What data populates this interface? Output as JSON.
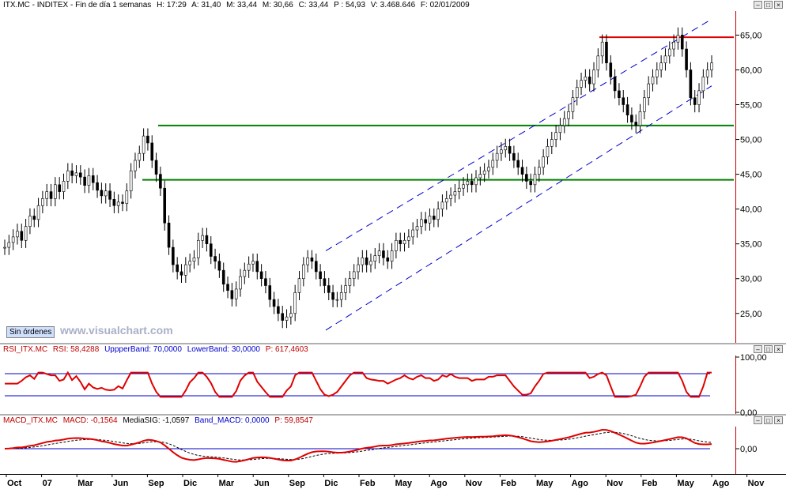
{
  "price_header": {
    "symbol": "ITX.MC - INDITEX - Fin de día 1 semanas",
    "h": "H: 17:29",
    "a": "A: 31,40",
    "m": "M: 33,44",
    "mn": "M: 30,66",
    "c": "C: 33,44",
    "p": "P : 54,93",
    "v": "V: 3.468.646",
    "f": "F: 02/01/2009"
  },
  "rsi_header": {
    "name": "RSI_ITX.MC",
    "value": "RSI: 58,4288",
    "upper": "UppperBand: 70,0000",
    "lower": "LowerBand: 30,0000",
    "p": "P: 617,4603"
  },
  "macd_header": {
    "name": "MACD_ITX.MC",
    "value": "MACD: -0,1564",
    "signal": "MediaSIG: -1,0597",
    "band": "Band_MACD: 0,0000",
    "p": "P: 59,8547"
  },
  "toolbar": {
    "sin_ordenes": "Sin órdenes",
    "watermark": "www.visualchart.com"
  },
  "colors": {
    "price": "#000000",
    "resistance": "#e00000",
    "support": "#008000",
    "channel": "#0000cc",
    "rsi": "#e00000",
    "band": "#0000cc",
    "macd": "#e00000",
    "signal": "#000000"
  },
  "chart_data": {
    "type": "candlestick",
    "price_axis_labels": [
      "65,00",
      "60,00",
      "55,00",
      "50,00",
      "45,00",
      "40,00",
      "35,00",
      "30,00",
      "25,00"
    ],
    "price_ylim": [
      21,
      68
    ],
    "rsi_axis_labels": [
      "100,00",
      "0,00"
    ],
    "macd_axis_labels": [
      "0,00"
    ],
    "x_tick_labels": [
      "Oct",
      "07",
      "Mar",
      "Jun",
      "Sep",
      "Dic",
      "Mar",
      "Jun",
      "Sep",
      "Dic",
      "Feb",
      "May",
      "Ago",
      "Nov",
      "Feb",
      "May",
      "Ago",
      "Nov",
      "Feb",
      "May",
      "Ago",
      "Nov"
    ],
    "horizontal_lines": [
      {
        "kind": "resistance",
        "value": 64.7
      },
      {
        "kind": "support",
        "value": 52.0
      },
      {
        "kind": "support",
        "value": 44.2
      }
    ],
    "rsi_bands": [
      70,
      30
    ],
    "price_series": [
      34.5,
      35.2,
      36,
      36.8,
      35.5,
      37.5,
      39,
      38.5,
      40.5,
      41.5,
      42.5,
      41.5,
      43.5,
      42.5,
      44,
      45.5,
      44.8,
      45.2,
      44.6,
      43.4,
      44.8,
      43.8,
      42.7,
      41.9,
      42.6,
      41.4,
      40.5,
      41,
      40.8,
      42.6,
      45.5,
      47,
      48,
      50.5,
      49.5,
      47,
      45,
      43,
      38,
      34.5,
      32,
      31,
      30.5,
      32,
      32.5,
      33,
      35.5,
      36.2,
      35,
      33.2,
      32.5,
      31.2,
      29.2,
      28.3,
      27.1,
      28.5,
      30.3,
      31.2,
      32.1,
      32.5,
      31,
      30,
      29,
      27,
      26,
      25,
      24,
      24.5,
      25,
      28,
      30,
      32,
      33,
      32.5,
      31,
      30,
      29,
      28,
      27,
      27,
      28,
      29,
      30,
      31,
      32,
      33,
      32,
      32.5,
      33.3,
      34,
      33,
      32.5,
      34,
      35.5,
      35,
      35.5,
      36,
      37,
      37.5,
      38.5,
      38,
      39,
      38.5,
      40,
      41,
      41.5,
      42,
      42.5,
      43,
      43.5,
      44,
      43.5,
      44.5,
      45,
      45.5,
      46,
      47,
      48,
      48.5,
      49,
      48,
      47,
      46,
      45,
      44,
      43.5,
      45,
      46,
      47.5,
      49,
      50,
      51,
      52,
      53,
      54,
      56,
      57.5,
      58.5,
      59,
      58,
      60,
      62,
      64,
      61,
      59,
      57,
      56,
      55,
      53.5,
      52.5,
      52,
      54,
      56,
      58,
      59,
      60,
      61,
      62,
      63,
      64,
      65,
      63,
      60,
      56,
      55,
      57,
      59,
      60,
      61
    ]
  }
}
